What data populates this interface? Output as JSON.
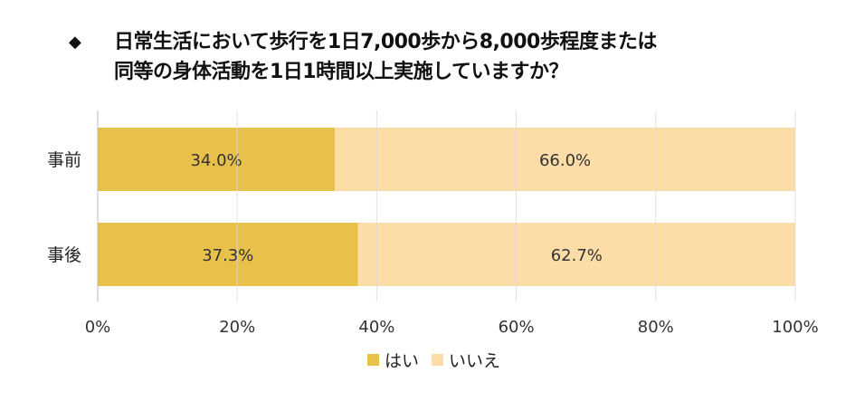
{
  "title": {
    "bullet": "◆",
    "line1": "日常生活において歩行を1日7,000歩から8,000歩程度または",
    "line2": "同等の身体活動を1日1時間以上実施していますか？"
  },
  "chart_data": {
    "type": "bar",
    "orientation": "horizontal",
    "stacked": true,
    "title": "日常生活において歩行を1日7,000歩から8,000歩程度または同等の身体活動を1日1時間以上実施していますか？",
    "categories": [
      "事前",
      "事後"
    ],
    "series": [
      {
        "name": "はい",
        "values": [
          34.0,
          37.3
        ],
        "labels": [
          "34.0%",
          "37.3%"
        ],
        "color": "#E8C14A"
      },
      {
        "name": "いいえ",
        "values": [
          66.0,
          62.7
        ],
        "labels": [
          "66.0%",
          "62.7%"
        ],
        "color": "#FCDDA8"
      }
    ],
    "xlim": [
      0,
      100
    ],
    "xticks": [
      "0%",
      "20%",
      "40%",
      "60%",
      "80%",
      "100%"
    ],
    "grid": true,
    "legend": "bottom"
  }
}
